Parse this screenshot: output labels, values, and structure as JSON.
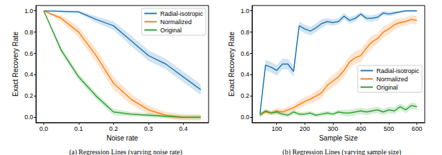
{
  "chart_data": [
    {
      "type": "line",
      "title": "(a) Regression Lines (varying noise rate)",
      "x_label": "Noise rate",
      "y_label": "Exact Recovery Rate",
      "x": [
        0,
        0.05,
        0.1,
        0.15,
        0.2,
        0.25,
        0.3,
        0.35,
        0.4,
        0.45
      ],
      "xlim": [
        -0.0225,
        0.4725
      ],
      "xticks": [
        {
          "value": 0,
          "label": "0.0"
        },
        0.1,
        0.2,
        0.3,
        0.4
      ],
      "ylim": [
        -0.05,
        1.05
      ],
      "yticks": [
        {
          "value": 0,
          "label": "0.0"
        },
        0.2,
        0.4,
        0.6,
        0.8,
        {
          "value": 1,
          "label": "1.0"
        }
      ],
      "grid": false,
      "legend": "upper right",
      "series": [
        {
          "name": "Radial-isotropic",
          "color": "#1f77b4",
          "values": [
            1.0,
            0.995,
            0.99,
            0.92,
            0.86,
            0.72,
            0.58,
            0.5,
            0.38,
            0.26
          ],
          "error": [
            0,
            0.01,
            0.01,
            0.03,
            0.04,
            0.05,
            0.05,
            0.05,
            0.05,
            0.05
          ]
        },
        {
          "name": "Normalized",
          "color": "#ff7f0e",
          "values": [
            1.0,
            0.93,
            0.8,
            0.58,
            0.32,
            0.17,
            0.07,
            0.02,
            0.0,
            0.0
          ],
          "error": [
            0,
            0.03,
            0.05,
            0.06,
            0.06,
            0.05,
            0.04,
            0.03,
            0.03,
            0.03
          ]
        },
        {
          "name": "Original",
          "color": "#2ca02c",
          "values": [
            1.0,
            0.63,
            0.38,
            0.2,
            0.05,
            0.03,
            0.02,
            0.01,
            0.0,
            0.0
          ],
          "error": [
            0,
            0.03,
            0.03,
            0.03,
            0.03,
            0.02,
            0.02,
            0.02,
            0.02,
            0.02
          ]
        }
      ]
    },
    {
      "type": "line",
      "title": "(b) Regression Lines (varying sample size)",
      "x_label": "Sample Size",
      "y_label": "Exact Recovery Rate",
      "x": [
        40,
        60,
        80,
        100,
        120,
        140,
        160,
        180,
        200,
        220,
        240,
        260,
        280,
        300,
        320,
        340,
        360,
        380,
        400,
        420,
        440,
        460,
        480,
        500,
        520,
        540,
        560,
        580,
        600
      ],
      "xlim": [
        12,
        628
      ],
      "xticks": [
        100,
        200,
        300,
        400,
        500,
        600
      ],
      "ylim": [
        -0.05,
        1.05
      ],
      "yticks": [
        {
          "value": 0,
          "label": "0.0"
        },
        0.2,
        0.4,
        0.6,
        0.8,
        {
          "value": 1,
          "label": "1.0"
        }
      ],
      "grid": false,
      "legend": "right",
      "series": [
        {
          "name": "Radial-isotropic",
          "color": "#1f77b4",
          "values": [
            0.03,
            0.49,
            0.47,
            0.44,
            0.5,
            0.5,
            0.43,
            0.86,
            0.83,
            0.81,
            0.84,
            0.88,
            0.9,
            0.89,
            0.9,
            0.95,
            0.91,
            0.93,
            0.97,
            0.93,
            0.93,
            0.94,
            0.98,
            0.97,
            0.98,
            0.99,
            1.0,
            1.0,
            1.0
          ],
          "error": [
            0.02,
            0.05,
            0.05,
            0.05,
            0.05,
            0.05,
            0.05,
            0.04,
            0.04,
            0.04,
            0.04,
            0.04,
            0.03,
            0.03,
            0.03,
            0.03,
            0.03,
            0.03,
            0.02,
            0.03,
            0.03,
            0.03,
            0.02,
            0.02,
            0.02,
            0.01,
            0.01,
            0.01,
            0.01
          ]
        },
        {
          "name": "Normalized",
          "color": "#ff7f0e",
          "values": [
            0.03,
            0.05,
            0.04,
            0.06,
            0.05,
            0.07,
            0.09,
            0.12,
            0.15,
            0.17,
            0.2,
            0.23,
            0.3,
            0.34,
            0.38,
            0.44,
            0.52,
            0.56,
            0.58,
            0.65,
            0.71,
            0.74,
            0.8,
            0.83,
            0.87,
            0.89,
            0.9,
            0.92,
            0.91
          ],
          "error": [
            0.02,
            0.02,
            0.02,
            0.03,
            0.03,
            0.03,
            0.03,
            0.04,
            0.04,
            0.04,
            0.05,
            0.05,
            0.05,
            0.06,
            0.06,
            0.06,
            0.06,
            0.06,
            0.06,
            0.06,
            0.06,
            0.05,
            0.05,
            0.05,
            0.05,
            0.04,
            0.04,
            0.04,
            0.04
          ]
        },
        {
          "name": "Original",
          "color": "#2ca02c",
          "values": [
            0.02,
            0.06,
            0.04,
            0.05,
            0.03,
            0.02,
            0.05,
            0.03,
            0.03,
            0.04,
            0.02,
            0.03,
            0.04,
            0.03,
            0.05,
            0.04,
            0.04,
            0.05,
            0.06,
            0.05,
            0.06,
            0.07,
            0.05,
            0.07,
            0.06,
            0.1,
            0.07,
            0.11,
            0.1
          ],
          "error": [
            0.02,
            0.02,
            0.02,
            0.02,
            0.02,
            0.02,
            0.02,
            0.02,
            0.02,
            0.02,
            0.02,
            0.02,
            0.02,
            0.02,
            0.02,
            0.03,
            0.03,
            0.03,
            0.03,
            0.03,
            0.03,
            0.03,
            0.03,
            0.03,
            0.03,
            0.03,
            0.03,
            0.03,
            0.03
          ]
        }
      ]
    }
  ]
}
